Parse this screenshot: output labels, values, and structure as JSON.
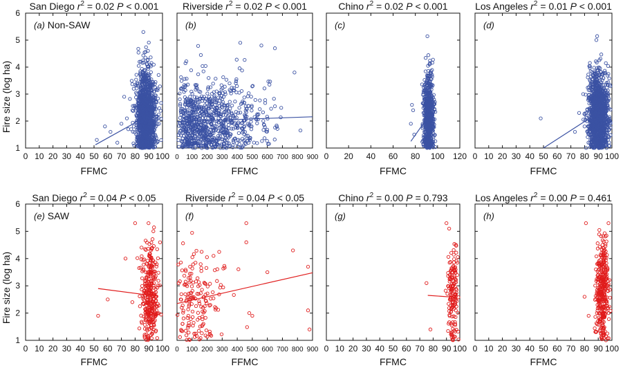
{
  "figure": {
    "ylabel": "Fire size (log ha)",
    "colors": {
      "non_saw": "#3b52a3",
      "saw": "#e01b1b",
      "axis": "#111111"
    },
    "italic_r": "r",
    "sup_2": "2",
    "italic_p": "P"
  },
  "chart_data": [
    {
      "id": "a",
      "type": "scatter",
      "location": "San Diego",
      "title": "San Diego r2 = 0.02 P < 0.001",
      "stat_r2": "= 0.02",
      "stat_p": "< 0.001",
      "panel_label": "(a)",
      "group_label": "Non-SAW",
      "group": "non_saw",
      "xlabel": "FFMC",
      "ylabel": "Fire size (log ha)",
      "xlim": [
        0,
        100
      ],
      "ylim": [
        1,
        6
      ],
      "xticks": [
        "0",
        "10",
        "20",
        "30",
        "40",
        "50",
        "60",
        "70",
        "80",
        "90",
        "100"
      ],
      "yticks": [
        "1",
        "2",
        "3",
        "4",
        "5",
        "6"
      ],
      "trend": [
        [
          51,
          1.12
        ],
        [
          84,
          2.05
        ],
        [
          96,
          2.0
        ]
      ],
      "n_points": 1400,
      "spread": {
        "x_mean": 88,
        "x_sd": 3.5,
        "x_min": 52,
        "x_max": 99,
        "y_mean": 2.2,
        "y_sd": 0.8,
        "outliers": [
          [
            52,
            1.3
          ],
          [
            58,
            1.8
          ],
          [
            62,
            1.6
          ],
          [
            67,
            1.2
          ],
          [
            70,
            1.9
          ],
          [
            72,
            2.9
          ],
          [
            74,
            2.1
          ],
          [
            75,
            1.7
          ],
          [
            78,
            2.4
          ],
          [
            79,
            3.2
          ]
        ]
      }
    },
    {
      "id": "b",
      "type": "scatter",
      "location": "Riverside",
      "title": "Riverside r2 = 0.02 P < 0.001",
      "stat_r2": "= 0.02",
      "stat_p": "< 0.001",
      "panel_label": "(b)",
      "group_label": "",
      "group": "non_saw",
      "xlabel": "FFMC",
      "xlim": [
        0,
        900
      ],
      "ylim": [
        1,
        6
      ],
      "xticks": [
        "0",
        "100",
        "200",
        "300",
        "400",
        "500",
        "600",
        "700",
        "800",
        "900"
      ],
      "yticks": [],
      "trend": [
        [
          0,
          1.98
        ],
        [
          900,
          2.16
        ]
      ],
      "n_points": 900,
      "spread": {
        "x_mean": 250,
        "x_sd": 200,
        "x_min": 0,
        "x_max": 900,
        "y_mean": 2.0,
        "y_sd": 0.75,
        "outliers": [
          [
            420,
            4.9
          ],
          [
            560,
            4.8
          ],
          [
            650,
            4.7
          ],
          [
            780,
            3.8
          ]
        ]
      }
    },
    {
      "id": "c",
      "type": "scatter",
      "location": "Chino",
      "title": "Chino r2 = 0.02 P < 0.001",
      "stat_r2": "= 0.02",
      "stat_p": "< 0.001",
      "panel_label": "(c)",
      "group_label": "",
      "group": "non_saw",
      "xlabel": "FFMC",
      "xlim": [
        0,
        120
      ],
      "ylim": [
        1,
        6
      ],
      "xticks": [
        "0",
        "20",
        "40",
        "60",
        "80",
        "100",
        "120"
      ],
      "yticks": [],
      "trend": [
        [
          76,
          1.25
        ],
        [
          93,
          2.25
        ],
        [
          96,
          2.1
        ]
      ],
      "n_points": 650,
      "spread": {
        "x_mean": 92,
        "x_sd": 2.2,
        "x_min": 74,
        "x_max": 98,
        "y_mean": 2.2,
        "y_sd": 0.85,
        "outliers": [
          [
            76,
            1.9
          ],
          [
            78,
            2.4
          ],
          [
            79,
            1.5
          ],
          [
            77,
            2.6
          ]
        ]
      }
    },
    {
      "id": "d",
      "type": "scatter",
      "location": "Los Angeles",
      "title": "Los Angeles r2 = 0.01 P < 0.001",
      "stat_r2": "= 0.01",
      "stat_p": "< 0.001",
      "panel_label": "(d)",
      "group_label": "",
      "group": "non_saw",
      "xlabel": "FFMC",
      "xlim": [
        0,
        100
      ],
      "ylim": [
        1,
        6
      ],
      "xticks": [
        "0",
        "10",
        "20",
        "30",
        "40",
        "50",
        "60",
        "70",
        "80",
        "90",
        "100"
      ],
      "yticks": [],
      "trend": [
        [
          50,
          1.0
        ],
        [
          82,
          2.05
        ],
        [
          96,
          2.1
        ]
      ],
      "n_points": 1400,
      "spread": {
        "x_mean": 90,
        "x_sd": 3.5,
        "x_min": 48,
        "x_max": 99,
        "y_mean": 2.2,
        "y_sd": 0.8,
        "outliers": [
          [
            48,
            2.1
          ],
          [
            73,
            1.6
          ],
          [
            76,
            2.3
          ],
          [
            79,
            3.0
          ],
          [
            80,
            1.8
          ]
        ]
      }
    },
    {
      "id": "e",
      "type": "scatter",
      "location": "San Diego",
      "title": "San Diego r2 = 0.04 P < 0.05",
      "stat_r2": "= 0.04",
      "stat_p": "< 0.05",
      "panel_label": "(e)",
      "group_label": "SAW",
      "group": "saw",
      "xlabel": "FFMC",
      "ylabel": "Fire size (log ha)",
      "xlim": [
        0,
        100
      ],
      "ylim": [
        1,
        6
      ],
      "xticks": [
        "0",
        "10",
        "20",
        "30",
        "40",
        "50",
        "60",
        "70",
        "80",
        "90",
        "100"
      ],
      "yticks": [
        "1",
        "2",
        "3",
        "4",
        "5",
        "6"
      ],
      "trend": [
        [
          53,
          2.9
        ],
        [
          96,
          2.62
        ]
      ],
      "n_points": 330,
      "spread": {
        "x_mean": 91,
        "x_sd": 3.0,
        "x_min": 53,
        "x_max": 99,
        "y_mean": 2.7,
        "y_sd": 0.9,
        "outliers": [
          [
            53,
            1.9
          ],
          [
            60,
            2.5
          ],
          [
            73,
            4.0
          ],
          [
            80,
            5.3
          ],
          [
            78,
            2.4
          ]
        ]
      }
    },
    {
      "id": "f",
      "type": "scatter",
      "location": "Riverside",
      "title": "Riverside r2 = 0.04 P < 0.05",
      "stat_r2": "= 0.04",
      "stat_p": "< 0.05",
      "panel_label": "(f)",
      "group_label": "",
      "group": "saw",
      "xlabel": "FFMC",
      "xlim": [
        0,
        900
      ],
      "ylim": [
        1,
        6
      ],
      "xticks": [
        "0",
        "100",
        "200",
        "300",
        "400",
        "500",
        "600",
        "700",
        "800",
        "900"
      ],
      "yticks": [],
      "trend": [
        [
          0,
          2.35
        ],
        [
          900,
          3.48
        ]
      ],
      "n_points": 170,
      "spread": {
        "x_mean": 150,
        "x_sd": 110,
        "x_min": 0,
        "x_max": 900,
        "y_mean": 2.6,
        "y_sd": 1.0,
        "outliers": [
          [
            460,
            5.3
          ],
          [
            460,
            4.6
          ],
          [
            480,
            2.0
          ],
          [
            500,
            1.9
          ],
          [
            600,
            3.5
          ],
          [
            770,
            4.3
          ],
          [
            870,
            3.7
          ],
          [
            870,
            2.1
          ],
          [
            880,
            1.4
          ]
        ]
      }
    },
    {
      "id": "g",
      "type": "scatter",
      "location": "Chino",
      "title": "Chino r2 = 0.00 P = 0.793",
      "stat_r2": "= 0.00",
      "stat_p": "= 0.793",
      "panel_label": "(g)",
      "group_label": "",
      "group": "saw",
      "xlabel": "FFMC",
      "xlim": [
        0,
        100
      ],
      "ylim": [
        1,
        6
      ],
      "xticks": [
        "0",
        "10",
        "20",
        "30",
        "40",
        "50",
        "60",
        "70",
        "80",
        "90",
        "100"
      ],
      "yticks": [],
      "trend": [
        [
          76,
          2.65
        ],
        [
          96,
          2.58
        ]
      ],
      "n_points": 150,
      "spread": {
        "x_mean": 95,
        "x_sd": 2.0,
        "x_min": 75,
        "x_max": 99,
        "y_mean": 2.7,
        "y_sd": 1.0,
        "outliers": [
          [
            75,
            3.1
          ],
          [
            78,
            1.4
          ],
          [
            90,
            5.3
          ],
          [
            92,
            5.1
          ]
        ]
      }
    },
    {
      "id": "h",
      "type": "scatter",
      "location": "Los Angeles",
      "title": "Los Angeles r2 = 0.00 P = 0.461",
      "stat_r2": "= 0.00",
      "stat_p": "= 0.461",
      "panel_label": "(h)",
      "group_label": "",
      "group": "saw",
      "xlabel": "FFMC",
      "xlim": [
        0,
        100
      ],
      "ylim": [
        1,
        6
      ],
      "xticks": [
        "0",
        "10",
        "20",
        "30",
        "40",
        "50",
        "60",
        "70",
        "80",
        "90",
        "100"
      ],
      "yticks": [],
      "trend": [],
      "n_points": 360,
      "spread": {
        "x_mean": 93,
        "x_sd": 2.5,
        "x_min": 80,
        "x_max": 99,
        "y_mean": 2.8,
        "y_sd": 0.95,
        "outliers": [
          [
            81,
            5.3
          ],
          [
            83,
            1.9
          ],
          [
            80,
            2.6
          ]
        ]
      }
    }
  ]
}
